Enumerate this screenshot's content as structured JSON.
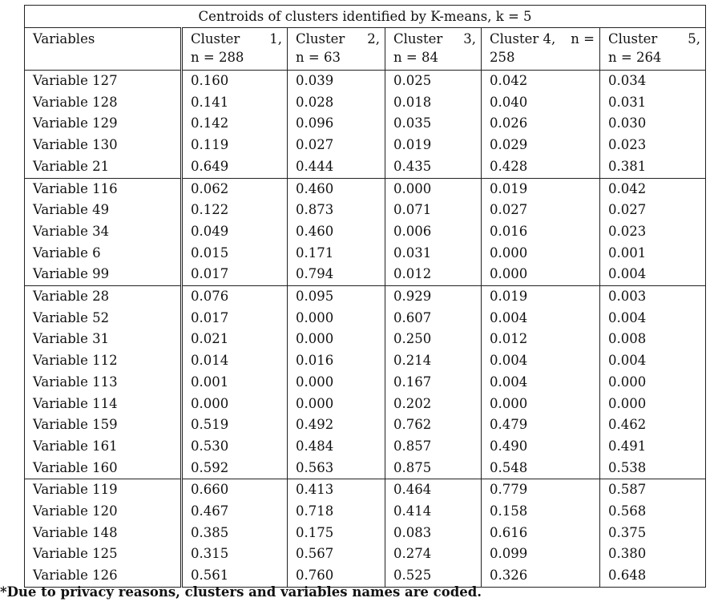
{
  "caption": "Centroids of clusters identified by K-means, k = 5",
  "headers": {
    "variables": "Variables",
    "clusters": [
      {
        "l1a": "Cluster",
        "l1b": "1,",
        "l2": "n = 288"
      },
      {
        "l1a": "Cluster",
        "l1b": "2,",
        "l2": "n = 63"
      },
      {
        "l1a": "Cluster",
        "l1b": "3,",
        "l2": "n = 84"
      },
      {
        "l1a": "Cluster 4,",
        "l1b": "n =",
        "l2": "258"
      },
      {
        "l1a": "Cluster",
        "l1b": "5,",
        "l2": "n = 264"
      }
    ]
  },
  "groups": [
    {
      "bold_col": 0,
      "rows": [
        {
          "name": "Variable 127",
          "values": [
            "0.160",
            "0.039",
            "0.025",
            "0.042",
            "0.034"
          ]
        },
        {
          "name": "Variable 128",
          "values": [
            "0.141",
            "0.028",
            "0.018",
            "0.040",
            "0.031"
          ]
        },
        {
          "name": "Variable 129",
          "values": [
            "0.142",
            "0.096",
            "0.035",
            "0.026",
            "0.030"
          ]
        },
        {
          "name": "Variable 130",
          "values": [
            "0.119",
            "0.027",
            "0.019",
            "0.029",
            "0.023"
          ]
        },
        {
          "name": "Variable 21",
          "values": [
            "0.649",
            "0.444",
            "0.435",
            "0.428",
            "0.381"
          ]
        }
      ]
    },
    {
      "bold_col": 1,
      "rows": [
        {
          "name": "Variable 116",
          "values": [
            "0.062",
            "0.460",
            "0.000",
            "0.019",
            "0.042"
          ]
        },
        {
          "name": "Variable 49",
          "values": [
            "0.122",
            "0.873",
            "0.071",
            "0.027",
            "0.027"
          ]
        },
        {
          "name": "Variable 34",
          "values": [
            "0.049",
            "0.460",
            "0.006",
            "0.016",
            "0.023"
          ]
        },
        {
          "name": "Variable 6",
          "values": [
            "0.015",
            "0.171",
            "0.031",
            "0.000",
            "0.001"
          ]
        },
        {
          "name": "Variable 99",
          "values": [
            "0.017",
            "0.794",
            "0.012",
            "0.000",
            "0.004"
          ]
        }
      ]
    },
    {
      "bold_col": 2,
      "rows": [
        {
          "name": "Variable 28",
          "values": [
            "0.076",
            "0.095",
            "0.929",
            "0.019",
            "0.003"
          ]
        },
        {
          "name": "Variable 52",
          "values": [
            "0.017",
            "0.000",
            "0.607",
            "0.004",
            "0.004"
          ]
        },
        {
          "name": "Variable 31",
          "values": [
            "0.021",
            "0.000",
            "0.250",
            "0.012",
            "0.008"
          ]
        },
        {
          "name": "Variable 112",
          "values": [
            "0.014",
            "0.016",
            "0.214",
            "0.004",
            "0.004"
          ]
        },
        {
          "name": "Variable 113",
          "values": [
            "0.001",
            "0.000",
            "0.167",
            "0.004",
            "0.000"
          ]
        },
        {
          "name": "Variable 114",
          "values": [
            "0.000",
            "0.000",
            "0.202",
            "0.000",
            "0.000"
          ]
        },
        {
          "name": "Variable 159",
          "values": [
            "0.519",
            "0.492",
            "0.762",
            "0.479",
            "0.462"
          ]
        },
        {
          "name": "Variable 161",
          "values": [
            "0.530",
            "0.484",
            "0.857",
            "0.490",
            "0.491"
          ]
        },
        {
          "name": "Variable 160",
          "values": [
            "0.592",
            "0.563",
            "0.875",
            "0.548",
            "0.538"
          ]
        }
      ]
    },
    {
      "bold_col": 3,
      "extra_bold": [
        [
          3,
          1
        ],
        [
          4,
          1
        ]
      ],
      "rows": [
        {
          "name": "Variable 119",
          "values": [
            "0.660",
            "0.413",
            "0.464",
            "0.779",
            "0.587"
          ]
        },
        {
          "name": "Variable 120",
          "values": [
            "0.467",
            "0.718",
            "0.414",
            "0.158",
            "0.568"
          ]
        },
        {
          "name": "Variable 148",
          "values": [
            "0.385",
            "0.175",
            "0.083",
            "0.616",
            "0.375"
          ]
        },
        {
          "name": "Variable 125",
          "values": [
            "0.315",
            "0.567",
            "0.274",
            "0.099",
            "0.380"
          ]
        },
        {
          "name": "Variable 126",
          "values": [
            "0.561",
            "0.760",
            "0.525",
            "0.326",
            "0.648"
          ]
        }
      ]
    }
  ],
  "footnote": "*Due to privacy reasons, clusters and variables names are coded."
}
